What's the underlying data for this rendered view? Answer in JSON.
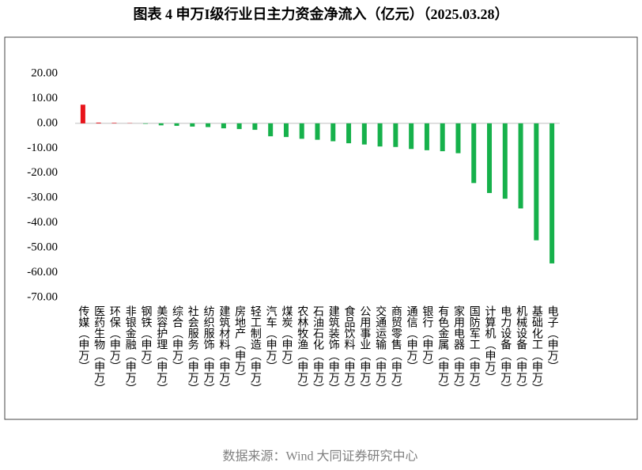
{
  "chart_data": {
    "type": "bar",
    "title": "图表 4  申万I级行业日主力资金净流入（亿元）（2025.03.28）",
    "source": "数据来源：Wind 大同证券研究中心",
    "categories": [
      "传媒（申万）",
      "医药生物（申万）",
      "环保（申万）",
      "非银金融（申万）",
      "钢铁（申万）",
      "美容护理（申万）",
      "综合（申万）",
      "社会服务（申万）",
      "纺织服饰（申万）",
      "建筑材料（申万）",
      "房地产（申万）",
      "轻工制造（申万）",
      "汽车（申万）",
      "煤炭（申万）",
      "农林牧渔（申万）",
      "石油石化（申万）",
      "建筑装饰（申万）",
      "食品饮料（申万）",
      "公用事业（申万）",
      "交通运输（申万）",
      "商贸零售（申万）",
      "通信（申万）",
      "银行（申万）",
      "有色金属（申万）",
      "家用电器（申万）",
      "国防军工（申万）",
      "计算机（申万）",
      "电力设备（申万）",
      "机械设备（申万）",
      "基础化工（申万）",
      "电子（申万）"
    ],
    "values": [
      7.5,
      0.3,
      0.2,
      0.1,
      -0.2,
      -0.8,
      -1.0,
      -1.3,
      -1.5,
      -2.0,
      -2.3,
      -2.6,
      -5.2,
      -5.5,
      -6.2,
      -6.6,
      -7.2,
      -8.0,
      -8.5,
      -9.3,
      -9.5,
      -10.3,
      -10.8,
      -11.2,
      -12.0,
      -24.0,
      -28.0,
      -30.3,
      -34.2,
      -47.0,
      -56.3
    ],
    "positive_color": "#e8141b",
    "negative_color": "#16b14b",
    "ylim": [
      -70,
      20
    ],
    "yticks": [
      {
        "value": 20,
        "label": "20.00"
      },
      {
        "value": 10,
        "label": "10.00"
      },
      {
        "value": 0,
        "label": "0.00"
      },
      {
        "value": -10,
        "label": "-10.00"
      },
      {
        "value": -20,
        "label": "-20.00"
      },
      {
        "value": -30,
        "label": "-30.00"
      },
      {
        "value": -40,
        "label": "-40.00"
      },
      {
        "value": -50,
        "label": "-50.00"
      },
      {
        "value": -60,
        "label": "-60.00"
      },
      {
        "value": -70,
        "label": "-70.00"
      }
    ],
    "grid": false
  }
}
